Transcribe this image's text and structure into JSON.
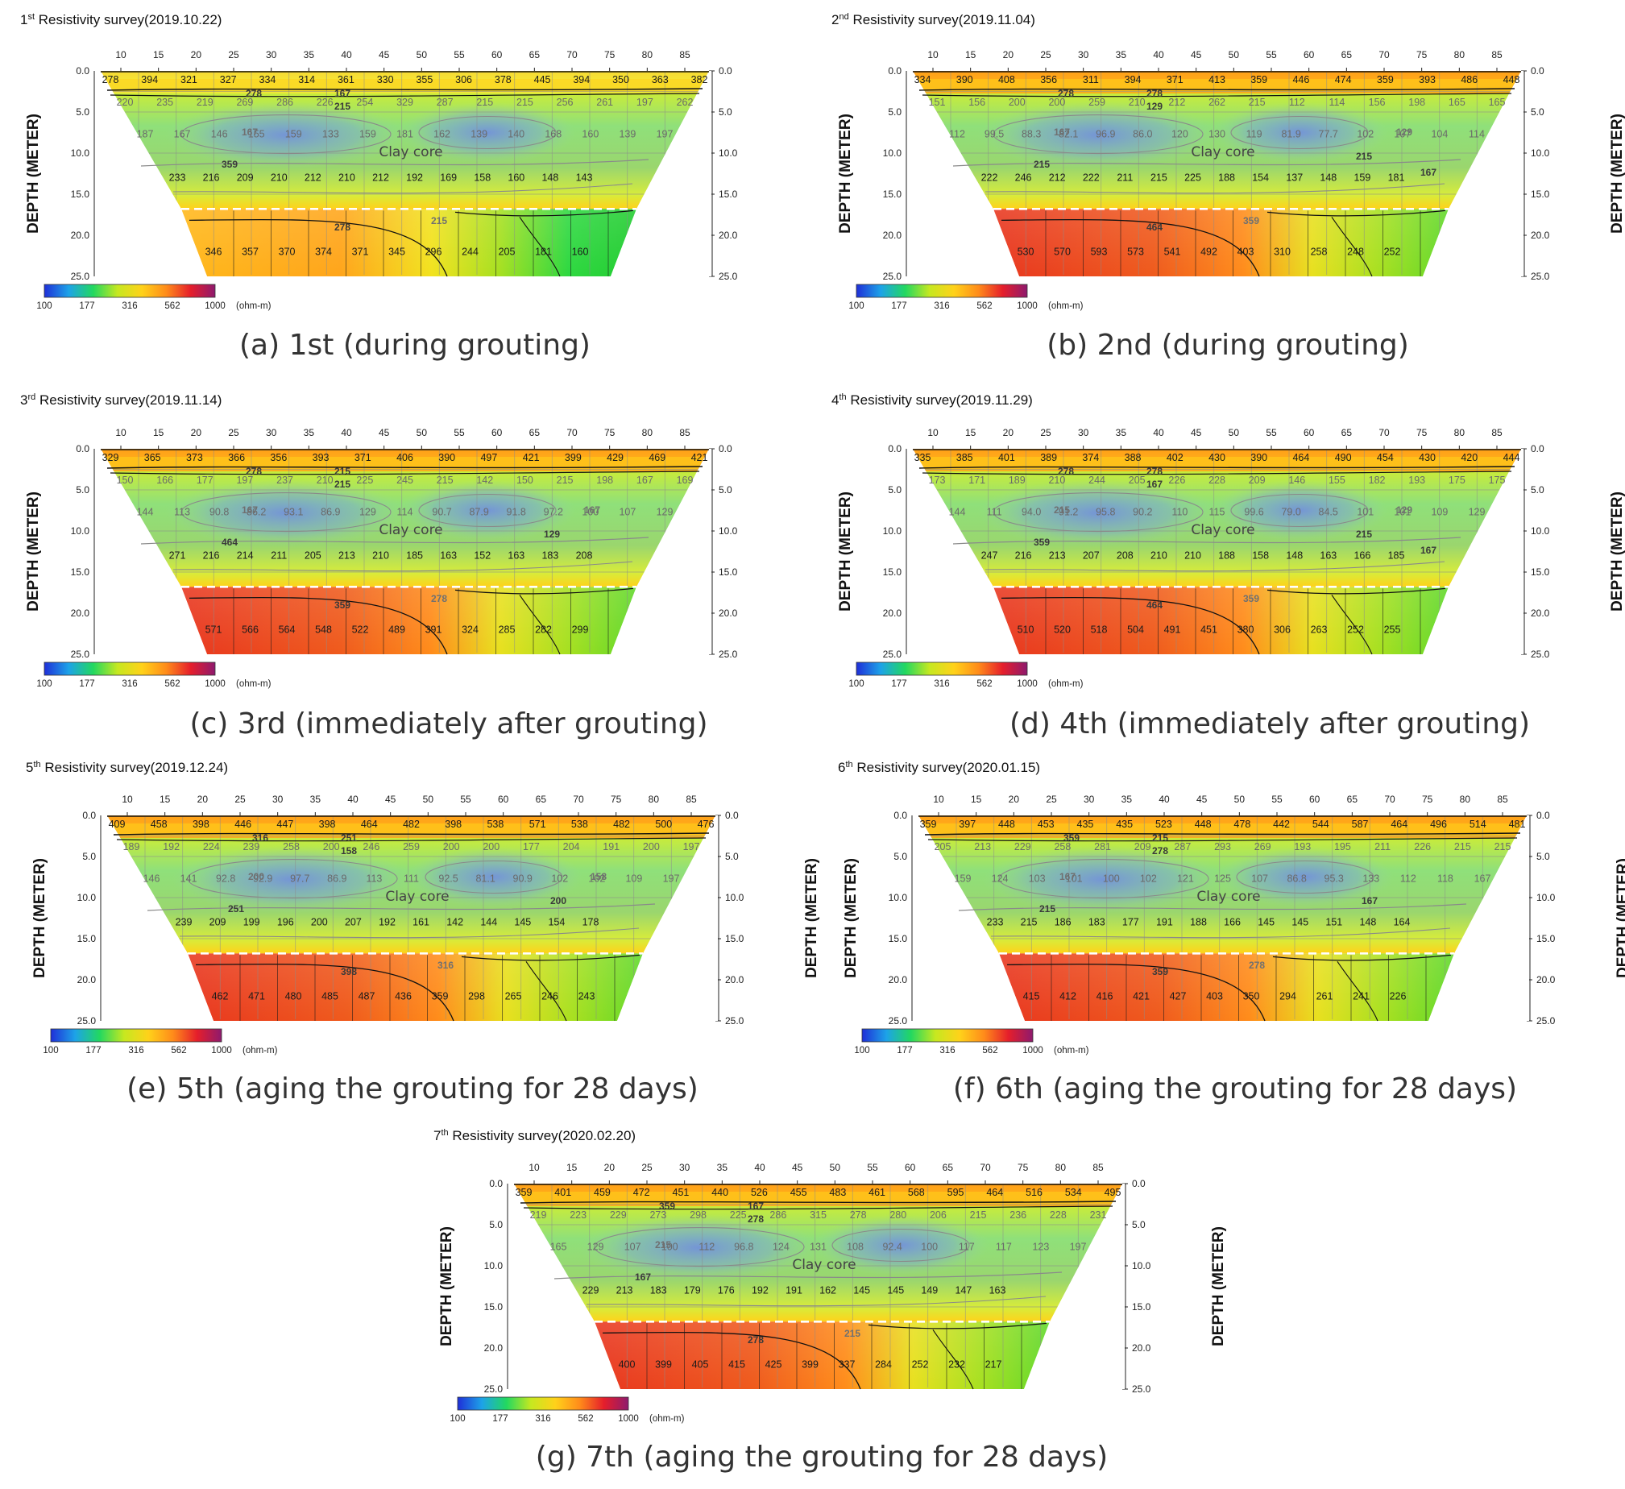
{
  "colors": {
    "colorbar": [
      "#1f2fd8",
      "#1da3e8",
      "#22d860",
      "#c6e820",
      "#ffd21a",
      "#ff8c1a",
      "#e51e2b",
      "#8e1a6e"
    ],
    "contour_line": "#222222",
    "contour_mid": "#8a8a8a",
    "grid": "#8c8c8c",
    "core_boundary": "#ffffff"
  },
  "common": {
    "x_ticks": [
      "10",
      "15",
      "20",
      "25",
      "30",
      "35",
      "40",
      "45",
      "50",
      "55",
      "60",
      "65",
      "70",
      "75",
      "80",
      "85"
    ],
    "depth_ticks": [
      "0.0",
      "5.0",
      "10.0",
      "15.0",
      "20.0",
      "25.0"
    ],
    "depth_axis_label": "DEPTH (METER)",
    "colorbar_ticks": [
      "100",
      "177",
      "316",
      "562",
      "1000"
    ],
    "colorbar_unit": "(ohm-m)",
    "clay_core_label": "Clay core"
  },
  "chart_data": [
    {
      "type": "heatmap",
      "survey_number": "1",
      "survey_suffix": "st",
      "title_rest": " Resistivity survey(2019.10.22)",
      "caption": "(a) 1st (during grouting)",
      "rows": {
        "top": [
          "278",
          "394",
          "321",
          "327",
          "334",
          "314",
          "361",
          "330",
          "355",
          "306",
          "378",
          "445",
          "394",
          "350",
          "363",
          "382"
        ],
        "upper": [
          "220",
          "235",
          "219",
          "269",
          "286",
          "226",
          "254",
          "329",
          "287",
          "215",
          "215",
          "256",
          "261",
          "197",
          "262"
        ],
        "core": [
          "187",
          "167",
          "146",
          "155",
          "159",
          "133",
          "159",
          "181",
          "162",
          "139",
          "140",
          "168",
          "160",
          "139",
          "197"
        ],
        "lower": [
          "233",
          "216",
          "209",
          "210",
          "212",
          "210",
          "212",
          "192",
          "169",
          "158",
          "160",
          "148",
          "143"
        ],
        "foundation": [
          "346",
          "357",
          "370",
          "374",
          "371",
          "345",
          "296",
          "244",
          "205",
          "181",
          "160"
        ]
      },
      "contours": [
        "278",
        "215",
        "167",
        "359",
        "278",
        "215",
        "167"
      ],
      "foundation_shade": "cool"
    },
    {
      "type": "heatmap",
      "survey_number": "2",
      "survey_suffix": "nd",
      "title_rest": " Resistivity survey(2019.11.04)",
      "caption": "(b) 2nd (during grouting)",
      "rows": {
        "top": [
          "334",
          "390",
          "408",
          "356",
          "311",
          "394",
          "371",
          "413",
          "359",
          "446",
          "474",
          "359",
          "393",
          "486",
          "448"
        ],
        "upper": [
          "151",
          "156",
          "200",
          "200",
          "259",
          "210",
          "212",
          "262",
          "215",
          "112",
          "114",
          "156",
          "198",
          "165",
          "165"
        ],
        "core": [
          "112",
          "99.5",
          "88.3",
          "82.1",
          "96.9",
          "86.0",
          "120",
          "130",
          "119",
          "81.9",
          "77.7",
          "102",
          "107",
          "104",
          "114"
        ],
        "lower": [
          "222",
          "246",
          "212",
          "222",
          "211",
          "215",
          "225",
          "188",
          "154",
          "137",
          "148",
          "159",
          "181"
        ],
        "foundation": [
          "530",
          "570",
          "593",
          "573",
          "541",
          "492",
          "403",
          "310",
          "258",
          "248",
          "252"
        ]
      },
      "contours": [
        "278",
        "129",
        "167",
        "215",
        "464",
        "359",
        "278",
        "215",
        "129",
        "167"
      ],
      "foundation_shade": "warm"
    },
    {
      "type": "heatmap",
      "survey_number": "3",
      "survey_suffix": "rd",
      "title_rest": " Resistivity survey(2019.11.14)",
      "caption": "(c) 3rd (immediately after grouting)",
      "rows": {
        "top": [
          "329",
          "365",
          "373",
          "366",
          "356",
          "393",
          "371",
          "406",
          "390",
          "497",
          "421",
          "399",
          "429",
          "469",
          "421"
        ],
        "upper": [
          "150",
          "166",
          "177",
          "197",
          "237",
          "210",
          "225",
          "245",
          "215",
          "142",
          "150",
          "215",
          "198",
          "167",
          "169"
        ],
        "core": [
          "144",
          "113",
          "90.8",
          "86.2",
          "93.1",
          "86.9",
          "129",
          "114",
          "90.7",
          "87.9",
          "91.8",
          "97.2",
          "100",
          "107",
          "129"
        ],
        "lower": [
          "271",
          "216",
          "214",
          "211",
          "205",
          "213",
          "210",
          "185",
          "163",
          "152",
          "163",
          "183",
          "208"
        ],
        "foundation": [
          "571",
          "566",
          "564",
          "548",
          "522",
          "489",
          "391",
          "324",
          "285",
          "282",
          "299"
        ]
      },
      "contours": [
        "278",
        "215",
        "167",
        "464",
        "359",
        "278",
        "215",
        "129",
        "167"
      ],
      "foundation_shade": "warm"
    },
    {
      "type": "heatmap",
      "survey_number": "4",
      "survey_suffix": "th",
      "title_rest": " Resistivity survey(2019.11.29)",
      "caption": "(d) 4th (immediately after grouting)",
      "rows": {
        "top": [
          "335",
          "385",
          "401",
          "389",
          "374",
          "388",
          "402",
          "430",
          "390",
          "464",
          "490",
          "454",
          "430",
          "420",
          "444"
        ],
        "upper": [
          "173",
          "171",
          "189",
          "210",
          "244",
          "205",
          "226",
          "228",
          "209",
          "146",
          "155",
          "182",
          "193",
          "175",
          "175"
        ],
        "core": [
          "144",
          "111",
          "94.0",
          "91.2",
          "95.8",
          "90.2",
          "110",
          "115",
          "99.6",
          "79.0",
          "84.5",
          "101",
          "101",
          "109",
          "129"
        ],
        "lower": [
          "247",
          "216",
          "213",
          "207",
          "208",
          "210",
          "210",
          "188",
          "158",
          "148",
          "163",
          "166",
          "185"
        ],
        "foundation": [
          "510",
          "520",
          "518",
          "504",
          "491",
          "451",
          "380",
          "306",
          "263",
          "252",
          "255"
        ]
      },
      "contours": [
        "278",
        "167",
        "215",
        "359",
        "464",
        "359",
        "278",
        "215",
        "129",
        "167"
      ],
      "foundation_shade": "warm"
    },
    {
      "type": "heatmap",
      "survey_number": "5",
      "survey_suffix": "th",
      "title_rest": " Resistivity survey(2019.12.24)",
      "caption": "(e) 5th (aging the grouting for 28 days)",
      "rows": {
        "top": [
          "409",
          "458",
          "398",
          "446",
          "447",
          "398",
          "464",
          "482",
          "398",
          "538",
          "571",
          "538",
          "482",
          "500",
          "476"
        ],
        "upper": [
          "189",
          "192",
          "224",
          "239",
          "258",
          "200",
          "246",
          "259",
          "200",
          "200",
          "177",
          "204",
          "191",
          "200",
          "197"
        ],
        "core": [
          "146",
          "141",
          "92.8",
          "92.9",
          "97.7",
          "86.9",
          "113",
          "111",
          "92.5",
          "81.1",
          "90.9",
          "102",
          "102",
          "109",
          "197"
        ],
        "lower": [
          "239",
          "209",
          "199",
          "196",
          "200",
          "207",
          "192",
          "161",
          "142",
          "144",
          "145",
          "154",
          "178"
        ],
        "foundation": [
          "462",
          "471",
          "480",
          "485",
          "487",
          "436",
          "359",
          "298",
          "265",
          "246",
          "243"
        ]
      },
      "contours": [
        "316",
        "158",
        "200",
        "251",
        "398",
        "316",
        "251",
        "200",
        "158"
      ],
      "foundation_shade": "warm"
    },
    {
      "type": "heatmap",
      "survey_number": "6",
      "survey_suffix": "th",
      "title_rest": " Resistivity survey(2020.01.15)",
      "caption": "(f) 6th (aging the grouting for 28 days)",
      "rows": {
        "top": [
          "359",
          "397",
          "448",
          "453",
          "435",
          "435",
          "523",
          "448",
          "478",
          "442",
          "544",
          "587",
          "464",
          "496",
          "514",
          "481"
        ],
        "upper": [
          "205",
          "213",
          "229",
          "258",
          "281",
          "209",
          "287",
          "293",
          "269",
          "193",
          "195",
          "211",
          "226",
          "215",
          "215"
        ],
        "core": [
          "159",
          "124",
          "103",
          "101",
          "100",
          "102",
          "121",
          "125",
          "107",
          "86.8",
          "95.3",
          "133",
          "112",
          "118",
          "167"
        ],
        "lower": [
          "233",
          "215",
          "186",
          "183",
          "177",
          "191",
          "188",
          "166",
          "145",
          "145",
          "151",
          "148",
          "164"
        ],
        "foundation": [
          "415",
          "412",
          "416",
          "421",
          "427",
          "403",
          "350",
          "294",
          "261",
          "241",
          "226"
        ]
      },
      "contours": [
        "359",
        "278",
        "167",
        "215",
        "359",
        "278",
        "215",
        "167"
      ],
      "foundation_shade": "warm"
    },
    {
      "type": "heatmap",
      "survey_number": "7",
      "survey_suffix": "th",
      "title_rest": " Resistivity survey(2020.02.20)",
      "caption": "(g) 7th (aging the grouting for 28 days)",
      "rows": {
        "top": [
          "359",
          "401",
          "459",
          "472",
          "451",
          "440",
          "526",
          "455",
          "483",
          "461",
          "568",
          "595",
          "464",
          "516",
          "534",
          "495"
        ],
        "upper": [
          "219",
          "223",
          "229",
          "273",
          "298",
          "225",
          "286",
          "315",
          "278",
          "280",
          "206",
          "215",
          "236",
          "228",
          "231"
        ],
        "core": [
          "165",
          "129",
          "107",
          "100",
          "112",
          "96.8",
          "124",
          "131",
          "108",
          "92.4",
          "100",
          "117",
          "117",
          "123",
          "197"
        ],
        "lower": [
          "229",
          "213",
          "183",
          "179",
          "176",
          "192",
          "191",
          "162",
          "145",
          "145",
          "149",
          "147",
          "163"
        ],
        "foundation": [
          "400",
          "399",
          "405",
          "415",
          "425",
          "399",
          "337",
          "284",
          "252",
          "232",
          "217"
        ]
      },
      "contours": [
        "359",
        "278",
        "215",
        "167",
        "278",
        "215",
        "167"
      ],
      "foundation_shade": "warm"
    }
  ]
}
